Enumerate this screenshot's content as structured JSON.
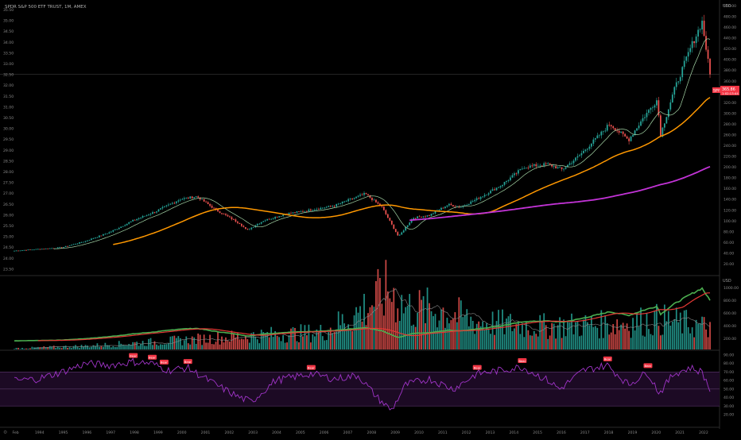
{
  "symbol_title": "SPDR S&P 500 ETF TRUST, 1M, AMEX",
  "ticker_tag": "SPY",
  "price_tag": "365.86",
  "price_tag_sub": "1:02:13:44",
  "currency_main": "USD",
  "currency_pane2": "USD",
  "colors": {
    "background": "#000000",
    "candle_up": "#26a69a",
    "candle_down": "#ef5350",
    "ma_short": "#a5d6a7",
    "ma_mid": "#ff9800",
    "ma_long": "#c233d6",
    "rsi_line": "#a034c8",
    "rsi_band": "#1c0a24",
    "pane2_line_a": "#4caf50",
    "pane2_line_b": "#e53935",
    "tag_bg": "#f23645"
  },
  "chart_data": [
    {
      "type": "candlestick",
      "pane": "price",
      "x_range": [
        1993.0,
        2022.5
      ],
      "x_ticks": [
        "Feb",
        "1994",
        "1995",
        "1996",
        "1997",
        "1998",
        "1999",
        "2000",
        "2001",
        "2002",
        "2003",
        "2004",
        "2005",
        "2006",
        "2007",
        "2008",
        "2009",
        "2010",
        "2011",
        "2012",
        "2013",
        "2014",
        "2015",
        "2016",
        "2017",
        "2018",
        "2019",
        "2020",
        "2021",
        "2022"
      ],
      "left_axis_ticks": [
        "35.50",
        "35.00",
        "34.50",
        "34.00",
        "33.50",
        "33.00",
        "32.50",
        "32.00",
        "31.50",
        "31.00",
        "30.50",
        "30.00",
        "29.50",
        "29.00",
        "28.50",
        "28.00",
        "27.50",
        "27.00",
        "26.50",
        "26.00",
        "25.50",
        "25.00",
        "24.50",
        "24.00",
        "23.50"
      ],
      "right_axis_ticks": [
        "500.00",
        "480.00",
        "460.00",
        "440.00",
        "420.00",
        "400.00",
        "380.00",
        "360.00",
        "340.00",
        "320.00",
        "300.00",
        "280.00",
        "260.00",
        "240.00",
        "220.00",
        "200.00",
        "180.00",
        "160.00",
        "140.00",
        "120.00",
        "100.00",
        "80.00",
        "60.00",
        "40.00",
        "20.00"
      ],
      "price_anchors": {
        "x": [
          1993.0,
          1994.0,
          1995.0,
          1996.0,
          1997.0,
          1998.0,
          1999.0,
          2000.0,
          2000.7,
          2001.5,
          2002.5,
          2002.8,
          2003.5,
          2004.5,
          2005.5,
          2006.5,
          2007.5,
          2007.8,
          2008.5,
          2009.2,
          2009.8,
          2010.5,
          2011.3,
          2011.8,
          2012.5,
          2013.5,
          2014.5,
          2015.5,
          2016.1,
          2016.8,
          2017.8,
          2018.1,
          2018.9,
          2019.5,
          2020.1,
          2020.25,
          2020.8,
          2021.5,
          2022.0,
          2022.35
        ],
        "close": [
          44,
          47,
          50,
          62,
          78,
          100,
          118,
          140,
          145,
          120,
          95,
          82,
          100,
          113,
          120,
          128,
          145,
          150,
          125,
          70,
          105,
          110,
          130,
          125,
          140,
          165,
          200,
          205,
          195,
          220,
          265,
          280,
          250,
          290,
          325,
          260,
          340,
          420,
          470,
          366
        ]
      },
      "series": [
        {
          "name": "",
          "role": "ma_short"
        },
        {
          "name": "",
          "role": "ma_mid"
        },
        {
          "name": "",
          "role": "ma_long"
        }
      ]
    },
    {
      "type": "bar",
      "pane": "volume",
      "axis_ticks": [
        "1000.00",
        "800.00",
        "600.00",
        "400.00",
        "200.00"
      ],
      "volume_anchors": {
        "x": [
          1993.0,
          1996.0,
          2000.0,
          2003.0,
          2006.0,
          2007.5,
          2008.8,
          2009.5,
          2011.0,
          2012.5,
          2015.0,
          2018.0,
          2020.3,
          2022.3
        ],
        "value": [
          5,
          15,
          40,
          60,
          75,
          160,
          260,
          180,
          170,
          120,
          100,
          110,
          130,
          95
        ]
      }
    },
    {
      "type": "line",
      "pane": "rsi",
      "axis_ticks": [
        "90.00",
        "80.00",
        "70.00",
        "60.00",
        "50.00",
        "40.00",
        "30.00",
        "20.00"
      ],
      "band": [
        30,
        70
      ],
      "midline": 50,
      "signal_labels": [
        "Bear",
        "Bear",
        "Bear",
        "Bear",
        "Bear",
        "Bear",
        "Bear",
        "Bear",
        "Bear"
      ],
      "signal_x": [
        1998.0,
        1998.8,
        1999.3,
        2000.3,
        2005.5,
        2012.5,
        2014.4,
        2018.0,
        2019.7
      ],
      "rsi_anchors": {
        "x": [
          1993.0,
          1994.0,
          1995.0,
          1996.0,
          1997.0,
          1998.0,
          1998.8,
          1999.5,
          2000.3,
          2001.5,
          2002.5,
          2003.0,
          2004.0,
          2005.5,
          2006.5,
          2007.5,
          2008.3,
          2008.9,
          2009.5,
          2010.5,
          2011.5,
          2012.5,
          2013.5,
          2014.4,
          2015.5,
          2016.0,
          2017.0,
          2018.0,
          2018.9,
          2019.7,
          2020.2,
          2020.8,
          2021.5,
          2022.0,
          2022.35
        ],
        "value": [
          60,
          62,
          70,
          80,
          78,
          82,
          80,
          72,
          75,
          55,
          40,
          35,
          60,
          68,
          62,
          66,
          40,
          25,
          55,
          62,
          50,
          68,
          72,
          76,
          60,
          50,
          72,
          78,
          55,
          70,
          45,
          68,
          75,
          70,
          48
        ]
      }
    }
  ]
}
